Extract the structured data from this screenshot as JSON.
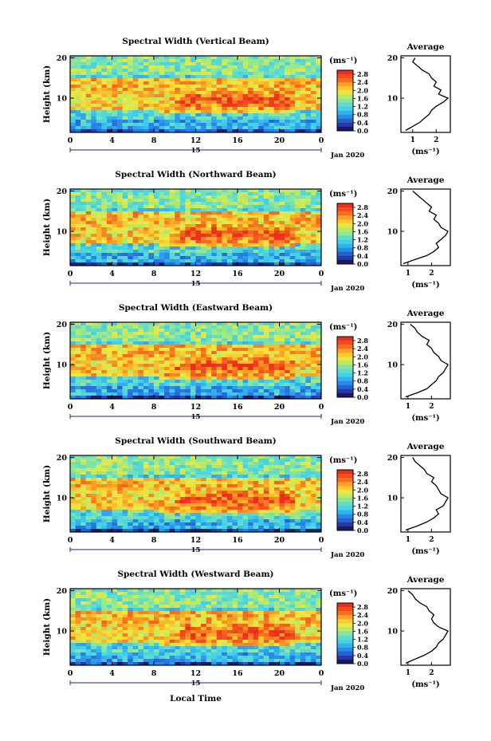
{
  "figure": {
    "xlabel": "Local Time",
    "date_label": "Jan 2020",
    "day_label": "15",
    "cbar_unit": "(ms⁻¹)",
    "avg_title": "Average",
    "avg_unit": "(ms⁻¹)"
  },
  "chart_data": [
    {
      "type": "heatmap",
      "title": "Spectral Width (Vertical Beam)",
      "xlabel": "Local Time",
      "ylabel": "Height (km)",
      "x_ticks": [
        "0",
        "4",
        "8",
        "12",
        "16",
        "20",
        "0"
      ],
      "xlim": [
        0,
        24
      ],
      "y_ticks": [
        "10",
        "20"
      ],
      "ylim": [
        1.5,
        20.5
      ],
      "colorbar": {
        "ticks": [
          "0.0",
          "0.4",
          "0.8",
          "1.2",
          "1.6",
          "2.0",
          "2.4",
          "2.8"
        ],
        "range": [
          0.0,
          3.0
        ],
        "unit": "(ms⁻¹)"
      },
      "profile": {
        "title": "Average",
        "x_ticks": [
          "1",
          "2"
        ],
        "xlim": [
          0.5,
          2.6
        ],
        "points": [
          [
            0.7,
            2
          ],
          [
            1.0,
            3
          ],
          [
            1.3,
            4
          ],
          [
            1.5,
            5
          ],
          [
            1.7,
            6
          ],
          [
            1.8,
            7
          ],
          [
            2.0,
            8
          ],
          [
            2.3,
            9
          ],
          [
            2.5,
            10
          ],
          [
            2.1,
            11
          ],
          [
            2.2,
            12
          ],
          [
            1.9,
            13
          ],
          [
            2.0,
            14
          ],
          [
            1.8,
            15
          ],
          [
            1.7,
            16
          ],
          [
            1.4,
            17
          ],
          [
            1.2,
            18
          ],
          [
            1.0,
            19
          ],
          [
            1.1,
            20
          ]
        ]
      }
    },
    {
      "type": "heatmap",
      "title": "Spectral Width (Northward Beam)",
      "xlabel": "Local Time",
      "ylabel": "Height (km)",
      "x_ticks": [
        "0",
        "4",
        "8",
        "12",
        "16",
        "20",
        "0"
      ],
      "xlim": [
        0,
        24
      ],
      "y_ticks": [
        "10",
        "20"
      ],
      "ylim": [
        1.5,
        20.5
      ],
      "colorbar": {
        "ticks": [
          "0.0",
          "0.4",
          "0.8",
          "1.2",
          "1.6",
          "2.0",
          "2.4",
          "2.8"
        ],
        "range": [
          0.0,
          3.0
        ],
        "unit": "(ms⁻¹)"
      },
      "profile": {
        "title": "Average",
        "x_ticks": [
          "1",
          "2"
        ],
        "xlim": [
          0.7,
          2.8
        ],
        "points": [
          [
            0.8,
            2
          ],
          [
            1.3,
            3
          ],
          [
            1.8,
            4
          ],
          [
            2.1,
            5
          ],
          [
            2.3,
            6
          ],
          [
            2.2,
            7
          ],
          [
            2.4,
            8
          ],
          [
            2.6,
            9
          ],
          [
            2.7,
            10
          ],
          [
            2.4,
            11
          ],
          [
            2.3,
            12
          ],
          [
            2.1,
            13
          ],
          [
            2.2,
            14
          ],
          [
            1.9,
            15
          ],
          [
            2.0,
            16
          ],
          [
            1.8,
            17
          ],
          [
            1.6,
            18
          ],
          [
            1.4,
            19
          ],
          [
            1.2,
            20
          ]
        ]
      }
    },
    {
      "type": "heatmap",
      "title": "Spectral Width (Eastward Beam)",
      "xlabel": "Local Time",
      "ylabel": "Height (km)",
      "x_ticks": [
        "0",
        "4",
        "8",
        "12",
        "16",
        "20",
        "0"
      ],
      "xlim": [
        0,
        24
      ],
      "y_ticks": [
        "10",
        "20"
      ],
      "ylim": [
        1.5,
        20.5
      ],
      "colorbar": {
        "ticks": [
          "0.0",
          "0.4",
          "0.8",
          "1.2",
          "1.6",
          "2.0",
          "2.4",
          "2.8"
        ],
        "range": [
          0.0,
          3.0
        ],
        "unit": "(ms⁻¹)"
      },
      "profile": {
        "title": "Average",
        "x_ticks": [
          "1",
          "2"
        ],
        "xlim": [
          0.7,
          2.8
        ],
        "points": [
          [
            0.9,
            2
          ],
          [
            1.4,
            3
          ],
          [
            1.8,
            4
          ],
          [
            2.0,
            5
          ],
          [
            2.2,
            6
          ],
          [
            2.3,
            7
          ],
          [
            2.5,
            8
          ],
          [
            2.6,
            9
          ],
          [
            2.7,
            10
          ],
          [
            2.4,
            11
          ],
          [
            2.3,
            12
          ],
          [
            2.1,
            13
          ],
          [
            2.0,
            14
          ],
          [
            1.8,
            15
          ],
          [
            1.9,
            16
          ],
          [
            1.6,
            17
          ],
          [
            1.4,
            18
          ],
          [
            1.3,
            19
          ],
          [
            1.1,
            20
          ]
        ]
      }
    },
    {
      "type": "heatmap",
      "title": "Spectral Width (Southward Beam)",
      "xlabel": "Local Time",
      "ylabel": "Height (km)",
      "x_ticks": [
        "0",
        "4",
        "8",
        "12",
        "16",
        "20",
        "0"
      ],
      "xlim": [
        0,
        24
      ],
      "y_ticks": [
        "10",
        "20"
      ],
      "ylim": [
        1.5,
        20.5
      ],
      "colorbar": {
        "ticks": [
          "0.0",
          "0.4",
          "0.8",
          "1.2",
          "1.6",
          "2.0",
          "2.4",
          "2.8"
        ],
        "range": [
          0.0,
          3.0
        ],
        "unit": "(ms⁻¹)"
      },
      "profile": {
        "title": "Average",
        "x_ticks": [
          "1",
          "2"
        ],
        "xlim": [
          0.7,
          2.8
        ],
        "points": [
          [
            0.9,
            2
          ],
          [
            1.4,
            3
          ],
          [
            1.8,
            4
          ],
          [
            2.1,
            5
          ],
          [
            2.3,
            6
          ],
          [
            2.2,
            7
          ],
          [
            2.5,
            8
          ],
          [
            2.6,
            9
          ],
          [
            2.7,
            10
          ],
          [
            2.4,
            11
          ],
          [
            2.3,
            12
          ],
          [
            2.2,
            13
          ],
          [
            2.0,
            14
          ],
          [
            2.1,
            15
          ],
          [
            1.8,
            16
          ],
          [
            1.7,
            17
          ],
          [
            1.5,
            18
          ],
          [
            1.3,
            19
          ],
          [
            1.2,
            20
          ]
        ]
      }
    },
    {
      "type": "heatmap",
      "title": "Spectral Width (Westward Beam)",
      "xlabel": "Local Time",
      "ylabel": "Height (km)",
      "x_ticks": [
        "0",
        "4",
        "8",
        "12",
        "16",
        "20",
        "0"
      ],
      "xlim": [
        0,
        24
      ],
      "y_ticks": [
        "10",
        "20"
      ],
      "ylim": [
        1.5,
        20.5
      ],
      "colorbar": {
        "ticks": [
          "0.0",
          "0.4",
          "0.8",
          "1.2",
          "1.6",
          "2.0",
          "2.4",
          "2.8"
        ],
        "range": [
          0.0,
          3.0
        ],
        "unit": "(ms⁻¹)"
      },
      "profile": {
        "title": "Average",
        "x_ticks": [
          "1",
          "2"
        ],
        "xlim": [
          0.7,
          2.8
        ],
        "points": [
          [
            0.9,
            2
          ],
          [
            1.3,
            3
          ],
          [
            1.7,
            4
          ],
          [
            2.0,
            5
          ],
          [
            2.2,
            6
          ],
          [
            2.3,
            7
          ],
          [
            2.5,
            8
          ],
          [
            2.6,
            9
          ],
          [
            2.7,
            10
          ],
          [
            2.3,
            11
          ],
          [
            2.1,
            12
          ],
          [
            2.0,
            13
          ],
          [
            2.1,
            14
          ],
          [
            1.9,
            15
          ],
          [
            1.8,
            16
          ],
          [
            1.5,
            17
          ],
          [
            1.3,
            18
          ],
          [
            1.2,
            19
          ],
          [
            1.0,
            20
          ]
        ]
      }
    }
  ]
}
